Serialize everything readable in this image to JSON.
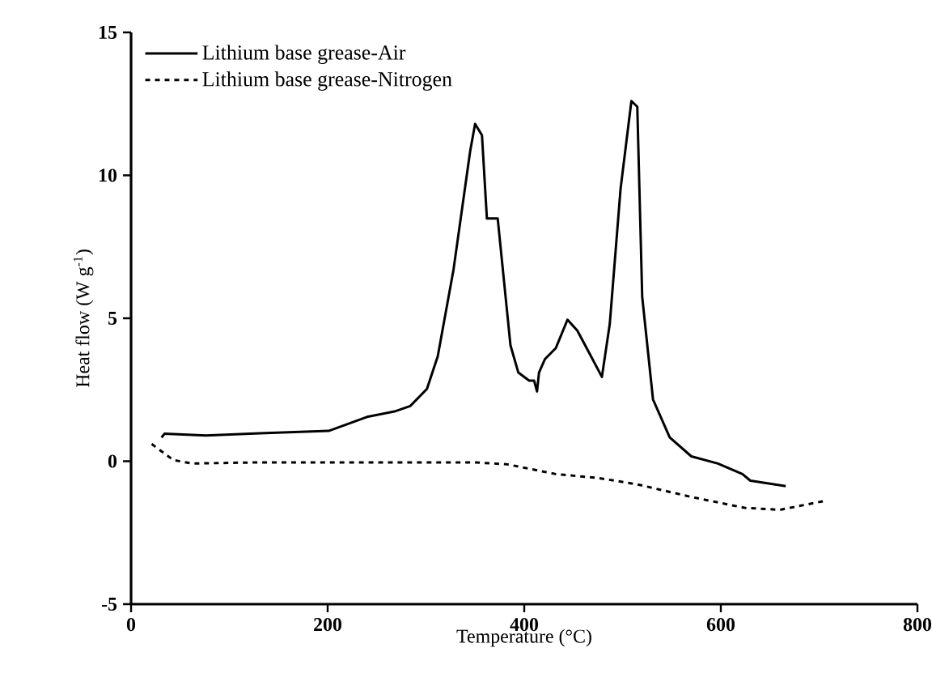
{
  "chart_data": {
    "type": "line",
    "xlabel": "Temperature (°C)",
    "ylabel": "Heat flow (W g$^{-1}$)",
    "xlim": [
      0,
      800
    ],
    "ylim": [
      -5,
      15
    ],
    "xticks": [
      0,
      200,
      400,
      600,
      800
    ],
    "yticks": [
      -5,
      0,
      5,
      10,
      15
    ],
    "legend": "top left",
    "marker": "none",
    "series": [
      {
        "name": "Lithium base grease-Air",
        "color": "#000000",
        "line_style": "solid",
        "x": [
          31,
          34,
          76,
          131,
          201,
          240,
          268,
          284,
          301,
          312,
          328,
          345,
          350,
          357,
          362,
          373,
          386,
          394,
          405,
          410,
          413,
          415,
          421,
          432,
          444,
          454,
          465,
          479,
          487,
          498,
          509,
          515,
          520,
          531,
          548,
          570,
          597,
          622,
          630,
          666
        ],
        "values": [
          0.83,
          0.96,
          0.9,
          0.98,
          1.06,
          1.55,
          1.74,
          1.93,
          2.53,
          3.67,
          6.69,
          10.85,
          11.8,
          11.4,
          8.49,
          8.49,
          4.05,
          3.1,
          2.82,
          2.82,
          2.44,
          3.1,
          3.57,
          3.95,
          4.95,
          4.57,
          3.86,
          2.95,
          4.8,
          9.53,
          12.6,
          12.4,
          5.75,
          2.16,
          0.83,
          0.17,
          -0.08,
          -0.45,
          -0.68,
          -0.87
        ]
      },
      {
        "name": "Lithium base grease-Nitrogen",
        "color": "#000000",
        "line_style": "dashed",
        "x": [
          21,
          43,
          62,
          131,
          350,
          383,
          432,
          476,
          515,
          570,
          624,
          660,
          685,
          704
        ],
        "values": [
          0.6,
          0.04,
          -0.08,
          -0.04,
          -0.04,
          -0.11,
          -0.45,
          -0.59,
          -0.81,
          -1.25,
          -1.63,
          -1.7,
          -1.53,
          -1.4
        ]
      }
    ]
  }
}
